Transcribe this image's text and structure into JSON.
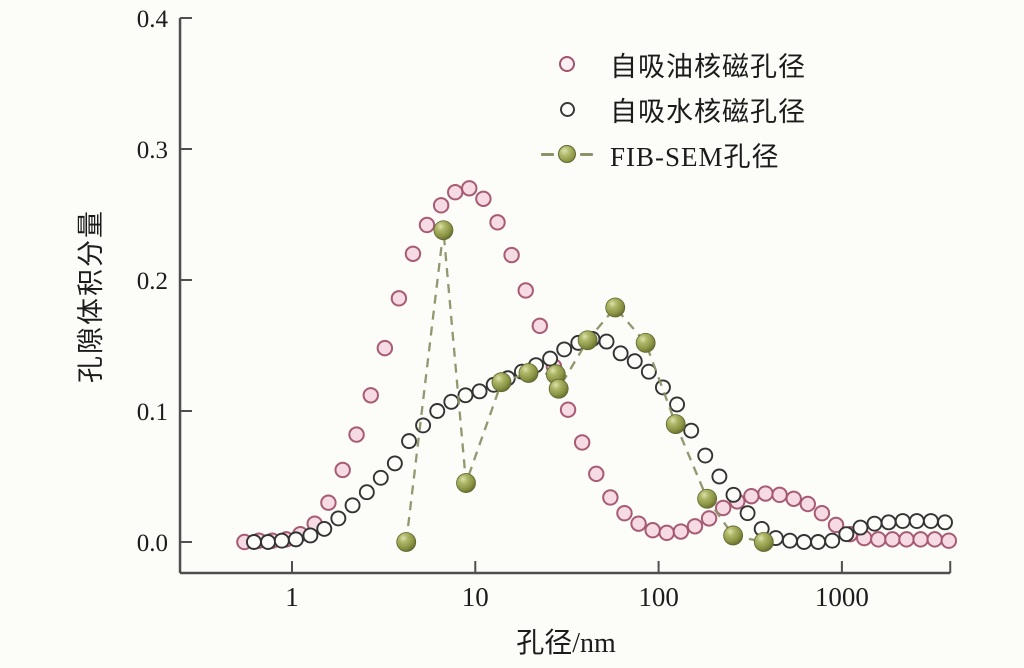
{
  "figure_background": "#fcfcf8",
  "chart_data": {
    "type": "scatter",
    "title": "",
    "xlabel": "孔径/nm",
    "ylabel": "孔隙体积分量",
    "x_scale": "log",
    "xlim": [
      0.245,
      3900
    ],
    "ylim": [
      -0.0237,
      0.4
    ],
    "grid": false,
    "legend_position": "upper-center-right inside",
    "xticks": [
      {
        "v": 1,
        "label": "1"
      },
      {
        "v": 10,
        "label": "10"
      },
      {
        "v": 100,
        "label": "100"
      },
      {
        "v": 1000,
        "label": "1000"
      }
    ],
    "yticks": [
      {
        "v": 0.0,
        "label": "0.0"
      },
      {
        "v": 0.1,
        "label": "0.1"
      },
      {
        "v": 0.2,
        "label": "0.2"
      },
      {
        "v": 0.3,
        "label": "0.3"
      },
      {
        "v": 0.4,
        "label": "0.4"
      }
    ],
    "series": [
      {
        "name": "自吸油核磁孔径",
        "marker": "open-circle",
        "stroke": "#a2536d",
        "fill": "#f7dbe4",
        "line": "none",
        "points": [
          [
            0.55,
            0.0
          ],
          [
            0.66,
            0.001
          ],
          [
            0.78,
            0.001
          ],
          [
            0.93,
            0.002
          ],
          [
            1.11,
            0.006
          ],
          [
            1.33,
            0.014
          ],
          [
            1.58,
            0.03
          ],
          [
            1.89,
            0.055
          ],
          [
            2.25,
            0.082
          ],
          [
            2.69,
            0.112
          ],
          [
            3.21,
            0.148
          ],
          [
            3.83,
            0.186
          ],
          [
            4.57,
            0.22
          ],
          [
            5.45,
            0.242
          ],
          [
            6.51,
            0.257
          ],
          [
            7.77,
            0.267
          ],
          [
            9.27,
            0.27
          ],
          [
            11.07,
            0.262
          ],
          [
            13.22,
            0.244
          ],
          [
            15.78,
            0.219
          ],
          [
            18.84,
            0.192
          ],
          [
            22.49,
            0.165
          ],
          [
            26.85,
            0.134
          ],
          [
            32.06,
            0.101
          ],
          [
            38.28,
            0.076
          ],
          [
            45.7,
            0.052
          ],
          [
            54.56,
            0.034
          ],
          [
            65.13,
            0.022
          ],
          [
            77.75,
            0.014
          ],
          [
            92.82,
            0.009
          ],
          [
            110.8,
            0.007
          ],
          [
            132.3,
            0.008
          ],
          [
            157.9,
            0.012
          ],
          [
            188.5,
            0.018
          ],
          [
            225.1,
            0.026
          ],
          [
            268.7,
            0.031
          ],
          [
            320.8,
            0.035
          ],
          [
            383.0,
            0.037
          ],
          [
            457.2,
            0.036
          ],
          [
            545.9,
            0.033
          ],
          [
            651.6,
            0.029
          ],
          [
            777.9,
            0.022
          ],
          [
            928.7,
            0.013
          ],
          [
            1108.7,
            0.006
          ],
          [
            1323.6,
            0.003
          ],
          [
            1580.1,
            0.002
          ],
          [
            1886.4,
            0.002
          ],
          [
            2252.0,
            0.002
          ],
          [
            2688.5,
            0.002
          ],
          [
            3209.6,
            0.002
          ],
          [
            3831.7,
            0.001
          ]
        ]
      },
      {
        "name": "自吸水核磁孔径",
        "marker": "open-circle",
        "stroke": "#333333",
        "fill": "#fcfcf8",
        "line": "none",
        "points": [
          [
            0.62,
            0.0
          ],
          [
            0.74,
            0.0
          ],
          [
            0.88,
            0.001
          ],
          [
            1.05,
            0.002
          ],
          [
            1.26,
            0.005
          ],
          [
            1.5,
            0.01
          ],
          [
            1.79,
            0.018
          ],
          [
            2.14,
            0.028
          ],
          [
            2.56,
            0.038
          ],
          [
            3.05,
            0.049
          ],
          [
            3.64,
            0.06
          ],
          [
            4.35,
            0.077
          ],
          [
            5.19,
            0.089
          ],
          [
            6.2,
            0.1
          ],
          [
            7.4,
            0.107
          ],
          [
            8.84,
            0.112
          ],
          [
            10.55,
            0.115
          ],
          [
            12.6,
            0.12
          ],
          [
            15.04,
            0.125
          ],
          [
            17.96,
            0.13
          ],
          [
            21.44,
            0.135
          ],
          [
            25.6,
            0.14
          ],
          [
            30.56,
            0.147
          ],
          [
            36.48,
            0.152
          ],
          [
            43.56,
            0.155
          ],
          [
            52.0,
            0.153
          ],
          [
            62.08,
            0.144
          ],
          [
            74.11,
            0.138
          ],
          [
            88.48,
            0.13
          ],
          [
            105.6,
            0.118
          ],
          [
            126.1,
            0.105
          ],
          [
            150.6,
            0.085
          ],
          [
            179.7,
            0.066
          ],
          [
            214.6,
            0.05
          ],
          [
            256.2,
            0.036
          ],
          [
            305.8,
            0.022
          ],
          [
            365.1,
            0.01
          ],
          [
            435.9,
            0.003
          ],
          [
            520.4,
            0.001
          ],
          [
            621.2,
            0.0
          ],
          [
            741.6,
            0.0
          ],
          [
            885.3,
            0.001
          ],
          [
            1056.9,
            0.006
          ],
          [
            1261.7,
            0.011
          ],
          [
            1506.2,
            0.014
          ],
          [
            1798.1,
            0.015
          ],
          [
            2146.6,
            0.016
          ],
          [
            2562.6,
            0.016
          ],
          [
            3059.2,
            0.016
          ],
          [
            3652.1,
            0.015
          ]
        ]
      },
      {
        "name": "FIB-SEM孔径",
        "marker": "filled-ball",
        "stroke": "#5f6630",
        "fill": "#8b9344",
        "line": "dashed",
        "line_color": "#8d9168",
        "points": [
          [
            4.2,
            0.0
          ],
          [
            6.7,
            0.238
          ],
          [
            8.9,
            0.045
          ],
          [
            13.9,
            0.122
          ],
          [
            19.5,
            0.129
          ],
          [
            27.5,
            0.128
          ],
          [
            28.5,
            0.117
          ],
          [
            41,
            0.154
          ],
          [
            58,
            0.179
          ],
          [
            85,
            0.152
          ],
          [
            124,
            0.09
          ],
          [
            184,
            0.033
          ],
          [
            255,
            0.005
          ],
          [
            375,
            0.0
          ]
        ]
      }
    ]
  }
}
